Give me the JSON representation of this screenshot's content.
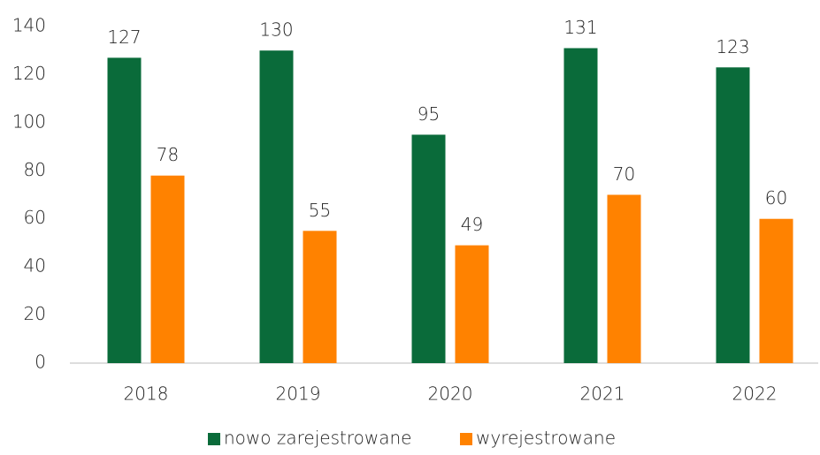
{
  "chart_data": {
    "type": "bar",
    "categories": [
      "2018",
      "2019",
      "2020",
      "2021",
      "2022"
    ],
    "series": [
      {
        "name": "nowo zarejestrowane",
        "color": "#0a6b3a",
        "values": [
          127,
          130,
          95,
          131,
          123
        ]
      },
      {
        "name": "wyrejestrowane",
        "color": "#ff8200",
        "values": [
          78,
          55,
          49,
          70,
          60
        ]
      }
    ],
    "ylim": [
      0,
      140
    ],
    "yticks": [
      0,
      20,
      40,
      60,
      80,
      100,
      120,
      140
    ],
    "grid": false,
    "legend": "bottom"
  }
}
